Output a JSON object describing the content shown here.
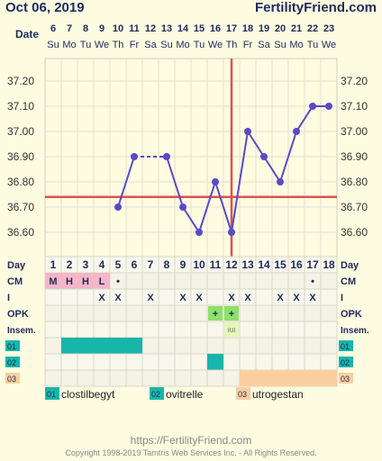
{
  "header": {
    "date": "Oct 06, 2019",
    "site": "FertilityFriend.com",
    "date_row_label": "Date"
  },
  "footer": {
    "url": "https://FertilityFriend.com",
    "copyright": "Copyright 1998-2019 Tamtris Web Services Inc. - All Rights Reserved."
  },
  "colors": {
    "background": "#fdfbe0",
    "temp_line": "#5a49c8",
    "coverline": "#d9534f",
    "ovulation_line": "#d9534f",
    "cm_pink": "#f4b6c8",
    "opk_green": "#8ee06a",
    "med1_teal": "#18b5aa",
    "med3_peach": "#f9cfa0"
  },
  "chart_data": {
    "type": "line",
    "dates": [
      "6",
      "7",
      "8",
      "9",
      "10",
      "11",
      "12",
      "13",
      "14",
      "15",
      "16",
      "17",
      "18",
      "19",
      "20",
      "21",
      "22",
      "23"
    ],
    "weekdays": [
      "Su",
      "Mo",
      "Tu",
      "We",
      "Th",
      "Fr",
      "Sa",
      "Su",
      "Mo",
      "Tu",
      "We",
      "Th",
      "Fr",
      "Sa",
      "Su",
      "Mo",
      "Tu",
      "We"
    ],
    "cycle_days": [
      "1",
      "2",
      "3",
      "4",
      "5",
      "6",
      "7",
      "8",
      "9",
      "10",
      "11",
      "12",
      "13",
      "14",
      "15",
      "16",
      "17",
      "18"
    ],
    "temperatures": [
      null,
      null,
      null,
      null,
      36.7,
      36.9,
      null,
      36.9,
      36.7,
      36.6,
      36.8,
      36.6,
      37.0,
      36.9,
      36.8,
      37.0,
      37.1,
      37.1
    ],
    "dashed_segment": [
      5,
      7
    ],
    "y_ticks": [
      "37.20",
      "37.10",
      "37.00",
      "36.90",
      "36.80",
      "36.70",
      "36.60"
    ],
    "ylim": [
      36.5,
      37.25
    ],
    "coverline": 36.74,
    "ovulation_day_index": 11,
    "rows": {
      "cm": {
        "label": "CM",
        "values": [
          "M",
          "H",
          "H",
          "L",
          "•",
          "",
          "",
          "",
          "",
          "",
          "",
          "",
          "",
          "",
          "",
          "",
          "•",
          ""
        ]
      },
      "intercourse": {
        "label": "I",
        "values": [
          "",
          "",
          "",
          "X",
          "X",
          "",
          "X",
          "",
          "X",
          "X",
          "",
          "X",
          "X",
          "",
          "X",
          "X",
          "X",
          ""
        ]
      },
      "opk": {
        "label": "OPK",
        "values": [
          "",
          "",
          "",
          "",
          "",
          "",
          "",
          "",
          "",
          "",
          "+",
          "+",
          "",
          "",
          "",
          "",
          "",
          ""
        ]
      },
      "insem": {
        "label": "Insem.",
        "values": [
          "",
          "",
          "",
          "",
          "",
          "",
          "",
          "",
          "",
          "",
          "",
          "IUI",
          "",
          "",
          "",
          "",
          "",
          ""
        ]
      },
      "med1": {
        "label": "01",
        "filled": [
          1,
          2,
          3,
          4,
          5
        ]
      },
      "med2": {
        "label": "02",
        "filled": [
          10
        ]
      },
      "med3": {
        "label": "03",
        "filled": [
          12,
          13,
          14,
          15,
          16,
          17
        ]
      }
    },
    "legend": [
      {
        "code": "01",
        "name": "clostilbegyt"
      },
      {
        "code": "02",
        "name": "ovitrelle"
      },
      {
        "code": "03",
        "name": "utrogestan"
      }
    ],
    "day_label": "Day",
    "grid": true
  }
}
